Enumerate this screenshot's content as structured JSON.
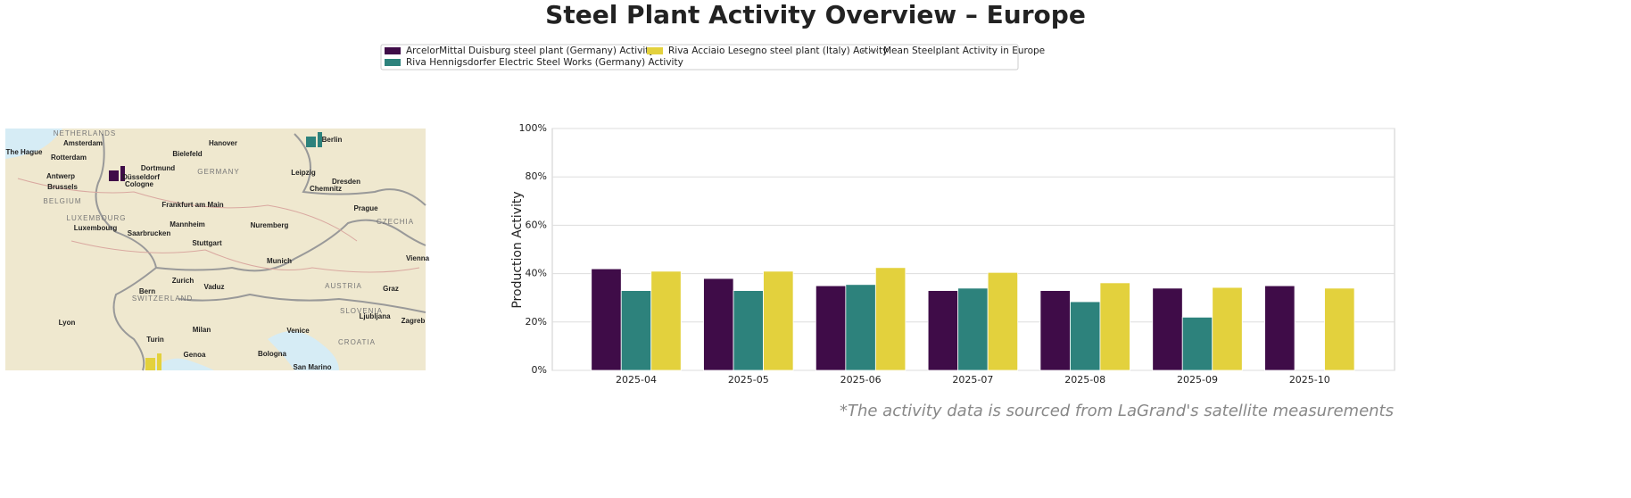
{
  "chart_data": {
    "type": "bar",
    "title": "Steel Plant Activity Overview – Europe",
    "ylabel": "Production Activity",
    "footnote": "*The activity data is sourced from LaGrand's satellite measurements",
    "categories": [
      "2025-04",
      "2025-05",
      "2025-06",
      "2025-07",
      "2025-08",
      "2025-09",
      "2025-10"
    ],
    "series": [
      {
        "name": "ArcelorMittal Duisburg steel plant (Germany) Activity",
        "color": "#3f0c48",
        "values": [
          42,
          38,
          35,
          33,
          33,
          34,
          35
        ]
      },
      {
        "name": "Riva Hennigsdorfer Electric Steel Works (Germany) Activity",
        "color": "#2d827c",
        "values": [
          33,
          33,
          35.5,
          34,
          28.4,
          22,
          null
        ]
      },
      {
        "name": "Riva Acciaio Lesegno steel plant (Italy) Activity",
        "color": "#e3d13d",
        "values": [
          41,
          41,
          42.5,
          40.5,
          36.2,
          34.3,
          34
        ]
      }
    ],
    "legend_extra": [
      {
        "name": "Mean Steelplant Activity in Europe",
        "color": "#888888",
        "dash": true
      }
    ],
    "ylim": [
      0,
      100
    ],
    "yticks": [
      {
        "value": 0,
        "label": "0%"
      },
      {
        "value": 20,
        "label": "20%"
      },
      {
        "value": 40,
        "label": "40%"
      },
      {
        "value": 60,
        "label": "60%"
      },
      {
        "value": 80,
        "label": "80%"
      },
      {
        "value": 100,
        "label": "100%"
      }
    ],
    "grid": true
  },
  "map": {
    "labels": [
      "NETHERLANDS",
      "Amsterdam",
      "The Hague",
      "Rotterdam",
      "Hanover",
      "Bielefeld",
      "Berlin",
      "Dortmund",
      "GERMANY",
      "Leipzig",
      "Antwerp",
      "Düsseldorf",
      "Brussels",
      "Dresden",
      "Cologne",
      "Chemnitz",
      "BELGIUM",
      "Frankfurt am Main",
      "Prague",
      "LUXEMBOURG",
      "CZECHIA",
      "Mannheim",
      "Nuremberg",
      "Luxembourg",
      "Saarbrucken",
      "Stuttgart",
      "Munich",
      "Vienna",
      "Zurich",
      "Vaduz",
      "AUSTRIA",
      "Graz",
      "Bern",
      "SWITZERLAND",
      "SLOVENIA",
      "Ljubljana",
      "Zagreb",
      "Lyon",
      "Milan",
      "Venice",
      "Turin",
      "CROATIA",
      "Genoa",
      "Bologna",
      "San Marino"
    ]
  }
}
